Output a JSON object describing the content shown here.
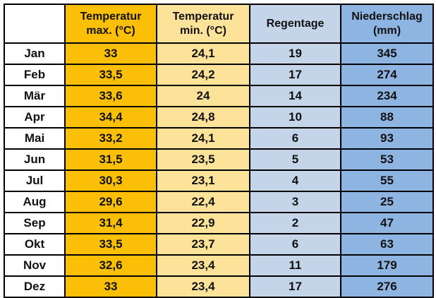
{
  "table": {
    "headers": {
      "month": "",
      "tmax_line1": "Temperatur",
      "tmax_line2": "max. (°C)",
      "tmin_line1": "Temperatur",
      "tmin_line2": "min. (°C)",
      "raindays": "Regentage",
      "precip_line1": "Niederschlag",
      "precip_line2": "(mm)"
    },
    "rows": [
      {
        "month": "Jan",
        "tmax": "33",
        "tmin": "24,1",
        "raindays": "19",
        "precip": "345"
      },
      {
        "month": "Feb",
        "tmax": "33,5",
        "tmin": "24,2",
        "raindays": "17",
        "precip": "274"
      },
      {
        "month": "Mär",
        "tmax": "33,6",
        "tmin": "24",
        "raindays": "14",
        "precip": "234"
      },
      {
        "month": "Apr",
        "tmax": "34,4",
        "tmin": "24,8",
        "raindays": "10",
        "precip": "88"
      },
      {
        "month": "Mai",
        "tmax": "33,2",
        "tmin": "24,1",
        "raindays": "6",
        "precip": "93"
      },
      {
        "month": "Jun",
        "tmax": "31,5",
        "tmin": "23,5",
        "raindays": "5",
        "precip": "53"
      },
      {
        "month": "Jul",
        "tmax": "30,3",
        "tmin": "23,1",
        "raindays": "4",
        "precip": "55"
      },
      {
        "month": "Aug",
        "tmax": "29,6",
        "tmin": "22,4",
        "raindays": "3",
        "precip": "25"
      },
      {
        "month": "Sep",
        "tmax": "31,4",
        "tmin": "22,9",
        "raindays": "2",
        "precip": "47"
      },
      {
        "month": "Okt",
        "tmax": "33,5",
        "tmin": "23,7",
        "raindays": "6",
        "precip": "63"
      },
      {
        "month": "Nov",
        "tmax": "32,6",
        "tmin": "23,4",
        "raindays": "11",
        "precip": "179"
      },
      {
        "month": "Dez",
        "tmax": "33",
        "tmin": "23,4",
        "raindays": "17",
        "precip": "276"
      }
    ]
  },
  "colors": {
    "tmax": "#fbbf08",
    "tmin": "#fde29a",
    "raindays": "#c5d5e9",
    "precip": "#8eb4e1",
    "border": "#000000"
  }
}
